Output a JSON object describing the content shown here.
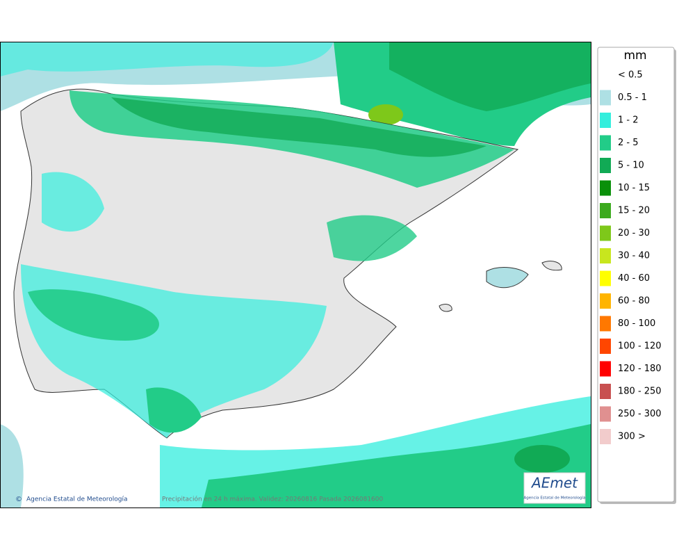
{
  "map": {
    "footer_credit": "Agencia Estatal de Meteorología",
    "footer_caption": "Precipitación en 24 h máxima. Validez: 20260816 Pasada 2026081600",
    "logo_text": "AEmet",
    "logo_subtext": "Agencia Estatal de Meteorología"
  },
  "legend": {
    "title": "mm",
    "items": [
      {
        "label": "< 0.5",
        "color": "#ffffff"
      },
      {
        "label": "0.5 - 1",
        "color": "#aee0e4"
      },
      {
        "label": "1 - 2",
        "color": "#33eedd"
      },
      {
        "label": "2 - 5",
        "color": "#22cc88"
      },
      {
        "label": "5 - 10",
        "color": "#11aa55"
      },
      {
        "label": "10 - 15",
        "color": "#0a900a"
      },
      {
        "label": "15 - 20",
        "color": "#3caa1e"
      },
      {
        "label": "20 - 30",
        "color": "#7ec81a"
      },
      {
        "label": "30 - 40",
        "color": "#c8e61e"
      },
      {
        "label": "40 - 60",
        "color": "#ffff00"
      },
      {
        "label": "60 - 80",
        "color": "#ffb400"
      },
      {
        "label": "80 - 100",
        "color": "#ff7800"
      },
      {
        "label": "100 - 120",
        "color": "#ff4600"
      },
      {
        "label": "120 - 180",
        "color": "#ff0000"
      },
      {
        "label": "180 - 250",
        "color": "#c85050"
      },
      {
        "label": "250 - 300",
        "color": "#e09090"
      },
      {
        "label": "300 >",
        "color": "#f2cccc"
      }
    ]
  }
}
